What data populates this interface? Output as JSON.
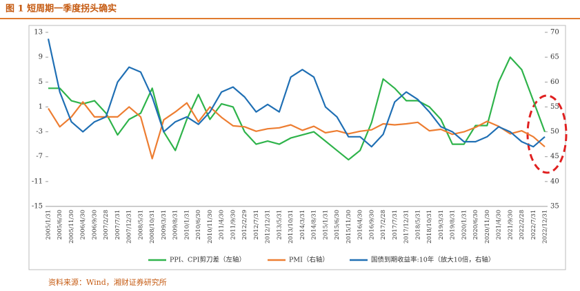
{
  "chart_data": {
    "type": "line",
    "title": "图 1 短周期一季度拐头确实",
    "source": "资料来源：Wind，湘财证券研究所",
    "categories": [
      "2005/1/31",
      "2005/6/30",
      "2005/11/30",
      "2006/4/30",
      "2006/9/30",
      "2007/2/28",
      "2007/7/31",
      "2007/12/31",
      "2008/5/31",
      "2008/10/31",
      "2009/3/31",
      "2009/8/31",
      "2010/1/31",
      "2010/6/30",
      "2010/11/30",
      "2011/4/30",
      "2011/9/30",
      "2012/2/29",
      "2012/7/31",
      "2012/12/31",
      "2013/5/31",
      "2013/10/31",
      "2014/3/31",
      "2014/8/31",
      "2015/1/31",
      "2015/6/30",
      "2015/11/30",
      "2016/4/30",
      "2016/9/30",
      "2017/2/28",
      "2017/7/31",
      "2017/12/31",
      "2018/5/31",
      "2018/10/31",
      "2019/3/31",
      "2019/8/31",
      "2020/1/31",
      "2020/6/30",
      "2020/11/30",
      "2021/4/30",
      "2021/9/30",
      "2022/2/28",
      "2022/7/31",
      "2022/12/31"
    ],
    "series": [
      {
        "name": "PPI、CPI剪刀差（左轴）",
        "color": "#2eb34a",
        "values": [
          4,
          4,
          2,
          1.5,
          2,
          0,
          -3.5,
          -1,
          0,
          4,
          -3,
          -6,
          -1,
          3,
          -1,
          1.5,
          1,
          -3,
          -5,
          -4.5,
          -5,
          -4,
          -3.5,
          -3,
          -4.5,
          -6,
          -7.5,
          -6,
          -1.5,
          5.5,
          4,
          2,
          2,
          1,
          -1,
          -5,
          -5,
          -2,
          -2,
          5,
          9,
          7,
          2,
          -3
        ]
      },
      {
        "name": "PMI（右轴）",
        "color": "#ed7d31",
        "axis": "y2",
        "values": [
          54.7,
          51,
          53,
          56,
          53,
          53,
          53,
          55,
          53,
          44.6,
          52.4,
          54,
          55.8,
          52,
          55,
          52.9,
          51.2,
          51,
          50.1,
          50.6,
          50.8,
          51.4,
          50.3,
          51.1,
          49.8,
          50.2,
          49.6,
          50.1,
          50.4,
          51.6,
          51.4,
          51.6,
          51.9,
          50.2,
          50.5,
          49.5,
          50,
          50.9,
          52.1,
          51.1,
          49.6,
          50.2,
          49,
          47
        ]
      },
      {
        "name": "国债到期收益率:10年（放大10倍，右轴）",
        "color": "#1f6fb4",
        "axis": "y2",
        "values": [
          68.7,
          58,
          52,
          50,
          52,
          53,
          60,
          63,
          62,
          57,
          50,
          52,
          53,
          51.5,
          54,
          58,
          59,
          57,
          54,
          55.5,
          54,
          61,
          62.5,
          61,
          55,
          53,
          49,
          49,
          47,
          49.5,
          56,
          58,
          56.5,
          54,
          51,
          50,
          48,
          48,
          49,
          51,
          50,
          48,
          47,
          49
        ]
      }
    ],
    "ylim": [
      -15,
      13
    ],
    "yticks": [
      -15,
      -11,
      -7,
      -3,
      1,
      5,
      9,
      13
    ],
    "y2lim": [
      35,
      70
    ],
    "y2ticks": [
      35,
      40,
      45,
      50,
      55,
      60,
      65,
      70
    ],
    "grid": false
  }
}
